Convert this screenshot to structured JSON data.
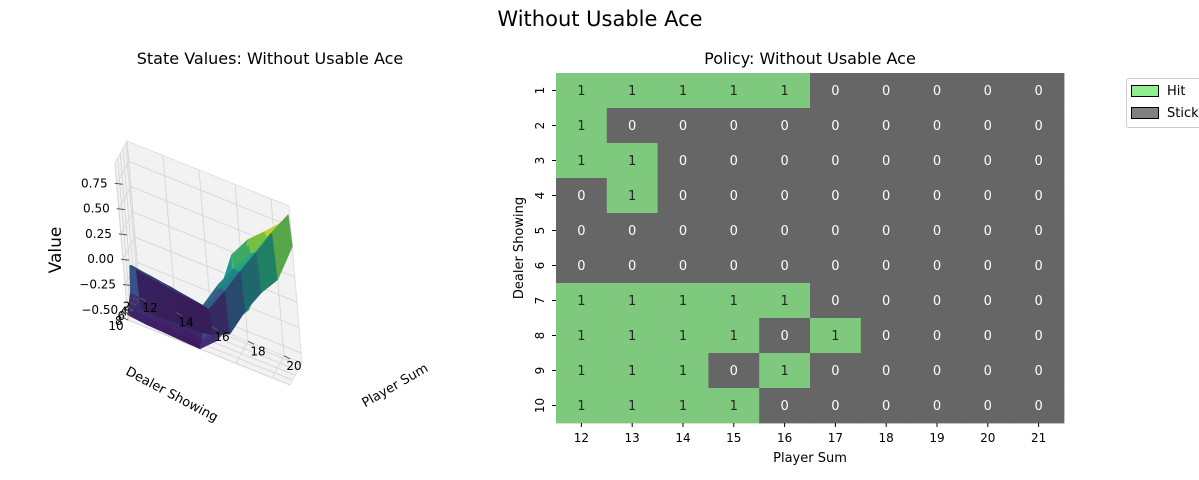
{
  "figure": {
    "suptitle": "Without Usable Ace"
  },
  "chart_data": [
    {
      "type": "surface",
      "title": "State Values: Without Usable Ace",
      "xlabel": "Player Sum",
      "ylabel": "Dealer Showing",
      "zlabel": "Value",
      "x": [
        12,
        13,
        14,
        15,
        16,
        17,
        18,
        19,
        20,
        21
      ],
      "y": [
        1,
        2,
        3,
        4,
        5,
        6,
        7,
        8,
        9,
        10
      ],
      "x_ticks": [
        "12",
        "14",
        "16",
        "18",
        "20"
      ],
      "y_ticks": [
        "2",
        "4",
        "6",
        "8",
        "10"
      ],
      "z_ticks": [
        "−0.50",
        "−0.25",
        "0.00",
        "0.25",
        "0.50",
        "0.75"
      ],
      "zlim": [
        -0.6,
        0.95
      ],
      "colormap": "viridis",
      "z": [
        [
          -0.7,
          -0.72,
          -0.7,
          -0.71,
          -0.68,
          -0.6,
          -0.3,
          -0.05,
          0.15,
          0.55
        ],
        [
          -0.3,
          -0.33,
          -0.36,
          -0.38,
          -0.4,
          -0.15,
          0.12,
          0.38,
          0.65,
          0.89
        ],
        [
          -0.25,
          -0.28,
          -0.3,
          -0.34,
          -0.37,
          -0.12,
          0.14,
          0.4,
          0.66,
          0.88
        ],
        [
          -0.22,
          -0.24,
          -0.27,
          -0.3,
          -0.33,
          -0.08,
          0.17,
          0.42,
          0.67,
          0.89
        ],
        [
          -0.18,
          -0.21,
          -0.24,
          -0.28,
          -0.3,
          -0.04,
          0.2,
          0.44,
          0.68,
          0.89
        ],
        [
          -0.16,
          -0.18,
          -0.21,
          -0.24,
          -0.27,
          0.01,
          0.25,
          0.47,
          0.7,
          0.9
        ],
        [
          -0.4,
          -0.42,
          -0.45,
          -0.48,
          -0.5,
          -0.1,
          0.4,
          0.62,
          0.77,
          0.93
        ],
        [
          -0.45,
          -0.48,
          -0.5,
          -0.52,
          -0.55,
          -0.35,
          0.1,
          0.58,
          0.79,
          0.93
        ],
        [
          -0.5,
          -0.52,
          -0.54,
          -0.56,
          -0.57,
          -0.4,
          -0.15,
          0.28,
          0.76,
          0.94
        ],
        [
          -0.55,
          -0.57,
          -0.58,
          -0.59,
          -0.6,
          -0.45,
          -0.2,
          0.0,
          0.43,
          0.89
        ]
      ]
    },
    {
      "type": "heatmap",
      "title": "Policy: Without Usable Ace",
      "xlabel": "Player Sum",
      "ylabel": "Dealer Showing",
      "x_categories": [
        "12",
        "13",
        "14",
        "15",
        "16",
        "17",
        "18",
        "19",
        "20",
        "21"
      ],
      "y_categories": [
        "1",
        "2",
        "3",
        "4",
        "5",
        "6",
        "7",
        "8",
        "9",
        "10"
      ],
      "values": [
        [
          1,
          1,
          1,
          1,
          1,
          0,
          0,
          0,
          0,
          0
        ],
        [
          1,
          0,
          0,
          0,
          0,
          0,
          0,
          0,
          0,
          0
        ],
        [
          1,
          1,
          0,
          0,
          0,
          0,
          0,
          0,
          0,
          0
        ],
        [
          0,
          1,
          0,
          0,
          0,
          0,
          0,
          0,
          0,
          0
        ],
        [
          0,
          0,
          0,
          0,
          0,
          0,
          0,
          0,
          0,
          0
        ],
        [
          0,
          0,
          0,
          0,
          0,
          0,
          0,
          0,
          0,
          0
        ],
        [
          1,
          1,
          1,
          1,
          1,
          0,
          0,
          0,
          0,
          0
        ],
        [
          1,
          1,
          1,
          1,
          0,
          1,
          0,
          0,
          0,
          0
        ],
        [
          1,
          1,
          1,
          0,
          1,
          0,
          0,
          0,
          0,
          0
        ],
        [
          1,
          1,
          1,
          1,
          0,
          0,
          0,
          0,
          0,
          0
        ]
      ],
      "colors": {
        "hit": "#7fc97f",
        "stick": "#666666"
      },
      "legend": {
        "placement": "upper-right-outside",
        "items": [
          {
            "label": "Hit",
            "color": "#90ee90"
          },
          {
            "label": "Stick",
            "color": "#808080"
          }
        ]
      }
    }
  ]
}
